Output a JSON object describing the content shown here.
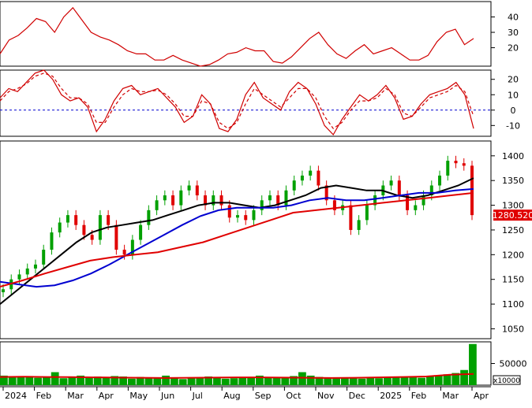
{
  "chart_data": [
    {
      "type": "line",
      "panel": "oscillator-1",
      "y_ticks": [
        40,
        30,
        20
      ],
      "ylim": [
        8,
        50
      ],
      "series": [
        {
          "color": "#d00000",
          "values": [
            16,
            25,
            28,
            33,
            39,
            37,
            30,
            40,
            46,
            38,
            30,
            27,
            25,
            22,
            18,
            16,
            16,
            12,
            12,
            15,
            12,
            10,
            8,
            9,
            12,
            16,
            17,
            20,
            18,
            18,
            11,
            10,
            14,
            20,
            26,
            30,
            22,
            16,
            13,
            18,
            22,
            16,
            18,
            20,
            16,
            12,
            12,
            15,
            24,
            30,
            32,
            22,
            26
          ]
        }
      ]
    },
    {
      "type": "line",
      "panel": "oscillator-2",
      "y_ticks": [
        20,
        10,
        0,
        -10
      ],
      "ylim": [
        -17,
        26
      ],
      "reference_line": 0,
      "series": [
        {
          "color": "#d00000",
          "values": [
            8,
            14,
            12,
            18,
            24,
            26,
            20,
            10,
            6,
            8,
            2,
            -14,
            -6,
            6,
            14,
            16,
            10,
            12,
            14,
            8,
            2,
            -8,
            -4,
            10,
            4,
            -12,
            -14,
            -6,
            10,
            18,
            8,
            4,
            0,
            12,
            18,
            14,
            4,
            -10,
            -16,
            -6,
            2,
            10,
            6,
            10,
            16,
            8,
            -6,
            -4,
            4,
            10,
            12,
            14,
            18,
            10,
            -12
          ]
        },
        {
          "color": "#d00000",
          "dashed": true,
          "values": [
            6,
            12,
            14,
            17,
            22,
            24,
            22,
            14,
            8,
            8,
            4,
            -8,
            -8,
            2,
            10,
            14,
            12,
            12,
            13,
            10,
            4,
            -4,
            -4,
            6,
            4,
            -8,
            -12,
            -8,
            4,
            14,
            10,
            6,
            2,
            8,
            14,
            14,
            8,
            -4,
            -12,
            -8,
            0,
            6,
            6,
            8,
            14,
            10,
            -2,
            -4,
            2,
            8,
            10,
            12,
            16,
            12,
            -4
          ]
        }
      ]
    },
    {
      "type": "candlestick",
      "panel": "price",
      "x_labels": [
        "2024",
        "Feb",
        "Mar",
        "Apr",
        "May",
        "Jun",
        "Jul",
        "Aug",
        "Sep",
        "Oct",
        "Nov",
        "Dec",
        "2025",
        "Feb",
        "Mar",
        "Apr"
      ],
      "y_ticks": [
        1400,
        1350,
        1300,
        1250,
        1200,
        1150,
        1100,
        1050
      ],
      "ylim": [
        1030,
        1430
      ],
      "last_price_label": "1280.520",
      "up_color": "#00a000",
      "down_color": "#e00000",
      "close": [
        1130,
        1150,
        1160,
        1172,
        1180,
        1210,
        1245,
        1265,
        1280,
        1260,
        1240,
        1230,
        1280,
        1260,
        1210,
        1200,
        1230,
        1260,
        1290,
        1310,
        1320,
        1300,
        1330,
        1340,
        1320,
        1300,
        1320,
        1300,
        1275,
        1280,
        1270,
        1290,
        1310,
        1320,
        1300,
        1330,
        1350,
        1360,
        1370,
        1340,
        1310,
        1290,
        1300,
        1250,
        1270,
        1300,
        1320,
        1340,
        1350,
        1320,
        1290,
        1300,
        1320,
        1340,
        1360,
        1390,
        1385,
        1380,
        1280
      ],
      "moving_averages": [
        {
          "color": "#000000",
          "values": [
            1100,
            1125,
            1150,
            1175,
            1200,
            1225,
            1245,
            1255,
            1260,
            1265,
            1270,
            1280,
            1290,
            1300,
            1305,
            1305,
            1300,
            1295,
            1300,
            1310,
            1320,
            1335,
            1340,
            1335,
            1330,
            1330,
            1320,
            1315,
            1320,
            1330,
            1340,
            1355
          ]
        },
        {
          "color": "#0000d0",
          "values": [
            1145,
            1140,
            1135,
            1138,
            1148,
            1162,
            1180,
            1200,
            1220,
            1240,
            1260,
            1278,
            1290,
            1295,
            1295,
            1295,
            1300,
            1310,
            1315,
            1310,
            1310,
            1315,
            1320,
            1325,
            1325,
            1330,
            1333
          ]
        },
        {
          "color": "#e00000",
          "values": [
            1135,
            1148,
            1162,
            1175,
            1188,
            1195,
            1200,
            1205,
            1215,
            1225,
            1240,
            1255,
            1270,
            1285,
            1290,
            1295,
            1300,
            1305,
            1310,
            1315,
            1320,
            1325
          ]
        }
      ]
    },
    {
      "type": "bar",
      "panel": "volume",
      "y_ticks": [
        50000
      ],
      "unit_label": "x10000",
      "ylim": [
        0,
        100000
      ],
      "bar_color": "#00a000",
      "values": [
        22000,
        18000,
        20000,
        21000,
        17000,
        19000,
        30000,
        16000,
        18000,
        22000,
        19000,
        20000,
        18000,
        21000,
        20000,
        15000,
        19000,
        18000,
        16000,
        22000,
        18000,
        14000,
        16000,
        17000,
        20000,
        18000,
        15000,
        16000,
        17000,
        19000,
        22000,
        18000,
        17000,
        19000,
        21000,
        30000,
        22000,
        19000,
        18000,
        17000,
        16000,
        18000,
        15000,
        17000,
        16000,
        18000,
        19000,
        20000,
        18000,
        17000,
        20000,
        22000,
        25000,
        28000,
        35000,
        95000
      ],
      "average": {
        "color": "#e00000",
        "values": [
          19000,
          19500,
          19000,
          18500,
          18000,
          17500,
          17000,
          16500,
          17000,
          17500,
          18000,
          18000,
          17500,
          17000,
          16500,
          17000,
          18000,
          19000,
          20000,
          24000,
          26000
        ]
      }
    }
  ]
}
